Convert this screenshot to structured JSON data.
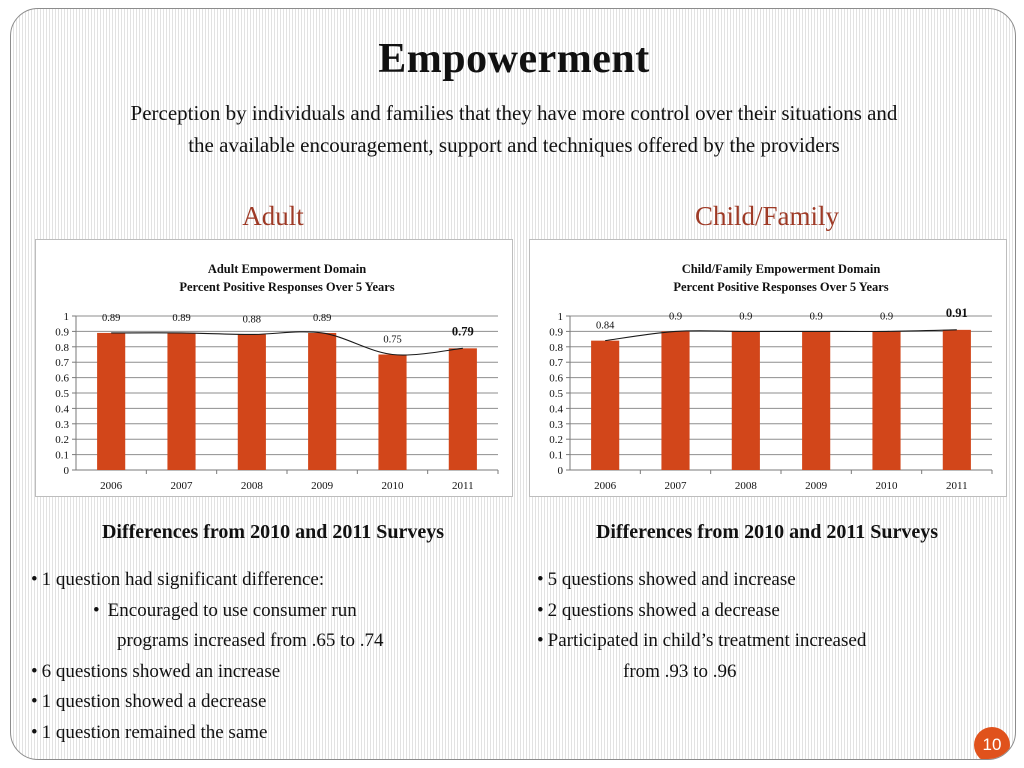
{
  "slide": {
    "title": "Empowerment",
    "subtitle_line1": "Perception by individuals and families that they have more control over their situations and",
    "subtitle_line2": "the available encouragement, support and techniques offered by the providers",
    "page_number": "10",
    "accent_color": "#9e3a26",
    "bar_color": "#d2461a"
  },
  "sections": {
    "adult": {
      "heading": "Adult",
      "diff_heading": "Differences from 2010 and 2011 Surveys",
      "bullets": [
        {
          "text": "1 question had significant difference:",
          "level": 0
        },
        {
          "text": "Encouraged to use consumer run",
          "level": 1
        },
        {
          "text": "programs increased from .65 to .74",
          "level": 2
        },
        {
          "text": "6 questions showed an increase",
          "level": 0
        },
        {
          "text": "1 question showed a decrease",
          "level": 0
        },
        {
          "text": "1 question remained the same",
          "level": 0
        }
      ]
    },
    "child": {
      "heading": "Child/Family",
      "diff_heading": "Differences from 2010 and 2011 Surveys",
      "bullets": [
        {
          "text": "5 questions showed and increase",
          "level": 0
        },
        {
          "text": "2 questions showed a decrease",
          "level": 0
        },
        {
          "text": "Participated in child’s treatment increased",
          "level": 0
        },
        {
          "text": "from .93 to .96",
          "level": 2
        }
      ]
    }
  },
  "chart_data": [
    {
      "type": "bar",
      "title": "Adult Empowerment Domain",
      "subtitle": "Percent Positive Responses Over 5 Years",
      "categories": [
        "2006",
        "2007",
        "2008",
        "2009",
        "2010",
        "2011"
      ],
      "values": [
        0.89,
        0.89,
        0.88,
        0.89,
        0.75,
        0.79
      ],
      "data_labels": [
        "0.89",
        "0.89",
        "0.88",
        "0.89",
        "0.75",
        "0.79"
      ],
      "highlight_last_label": true,
      "ylim": [
        0,
        1
      ],
      "yticks": [
        "0",
        "0.1",
        "0.2",
        "0.3",
        "0.4",
        "0.5",
        "0.6",
        "0.7",
        "0.8",
        "0.9",
        "1"
      ],
      "grid": true,
      "trendline": true,
      "legend": "none",
      "xlabel": "",
      "ylabel": ""
    },
    {
      "type": "bar",
      "title": "Child/Family Empowerment Domain",
      "subtitle": "Percent Positive  Responses Over 5 Years",
      "categories": [
        "2006",
        "2007",
        "2008",
        "2009",
        "2010",
        "2011"
      ],
      "values": [
        0.84,
        0.9,
        0.9,
        0.9,
        0.9,
        0.91
      ],
      "data_labels": [
        "0.84",
        "0.9",
        "0.9",
        "0.9",
        "0.9",
        "0.91"
      ],
      "highlight_last_label": true,
      "ylim": [
        0,
        1
      ],
      "yticks": [
        "0",
        "0.1",
        "0.2",
        "0.3",
        "0.4",
        "0.5",
        "0.6",
        "0.7",
        "0.8",
        "0.9",
        "1"
      ],
      "grid": true,
      "trendline": true,
      "legend": "none",
      "xlabel": "",
      "ylabel": ""
    }
  ]
}
